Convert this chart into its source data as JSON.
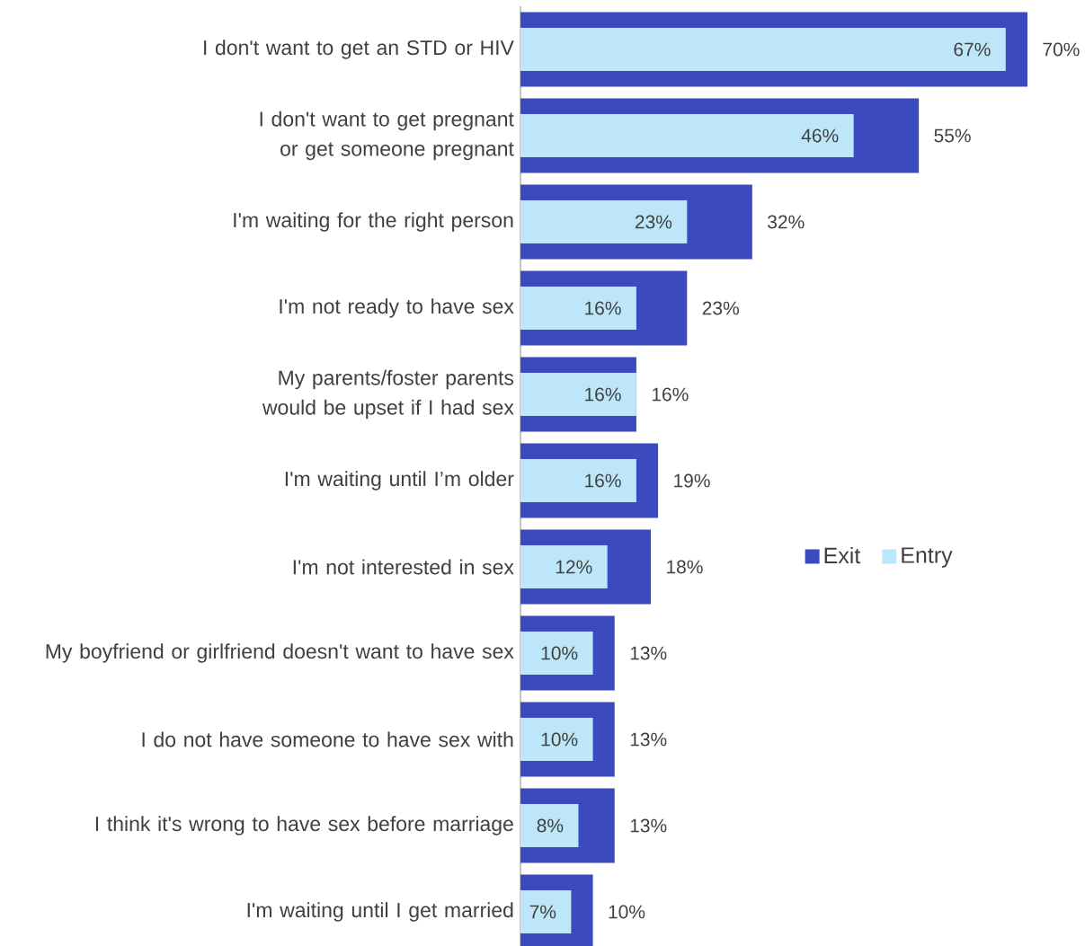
{
  "chart_data": {
    "type": "bar",
    "orientation": "horizontal",
    "categories": [
      "I don't want to get an STD or HIV",
      "I don't want to get pregnant or get someone pregnant",
      "I'm waiting for the right person",
      "I'm not ready to have sex",
      "My parents/foster parents would be upset if I had sex",
      "I'm waiting until I’m older",
      "I'm not interested in sex",
      "My boyfriend or girlfriend doesn't want to have sex",
      "I do not have someone to have sex with",
      "I think it's wrong to have sex before marriage",
      "I'm waiting until I get married"
    ],
    "series": [
      {
        "name": "Exit",
        "color": "#3b4bbf",
        "values": [
          70,
          55,
          32,
          23,
          16,
          19,
          18,
          13,
          13,
          13,
          10
        ],
        "value_labels": [
          "70%",
          "55%",
          "32%",
          "23%",
          "16%",
          "19%",
          "18%",
          "13%",
          "13%",
          "13%",
          "10%"
        ]
      },
      {
        "name": "Entry",
        "color": "#bde7f9",
        "values": [
          67,
          46,
          23,
          16,
          16,
          16,
          12,
          10,
          10,
          8,
          7
        ],
        "value_labels": [
          "67%",
          "46%",
          "23%",
          "16%",
          "16%",
          "16%",
          "12%",
          "10%",
          "10%",
          "8%",
          "7%"
        ]
      }
    ],
    "legend": "right"
  }
}
